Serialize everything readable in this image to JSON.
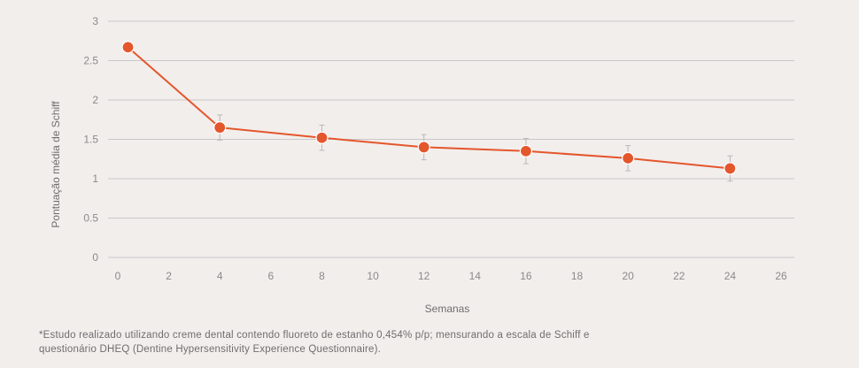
{
  "chart_data": {
    "type": "line",
    "xlabel": "Semanas",
    "ylabel": "Pontuação média de Schiff",
    "xlim": [
      0,
      26
    ],
    "ylim": [
      0,
      3
    ],
    "x_ticks": [
      0,
      2,
      4,
      6,
      8,
      10,
      12,
      14,
      16,
      18,
      20,
      22,
      24,
      26
    ],
    "y_ticks": [
      "0",
      "0.5",
      "1",
      "1.5",
      "2",
      "2.5",
      "3"
    ],
    "grid": "horizontal",
    "series": [
      {
        "color": "#e4562c",
        "x": [
          0.4,
          4,
          8,
          12,
          16,
          20,
          24
        ],
        "y": [
          2.67,
          1.65,
          1.52,
          1.4,
          1.35,
          1.26,
          1.13
        ],
        "error": [
          0,
          0.16,
          0.16,
          0.16,
          0.16,
          0.16,
          0.16
        ]
      }
    ]
  },
  "footnote": {
    "line1": "*Estudo realizado utilizando creme dental contendo fluoreto de estanho 0,454% p/p; mensurando a escala de Schiff e",
    "line2": "questionário DHEQ (Dentine Hypersensitivity Experience Questionnaire)."
  },
  "colors": {
    "background": "#f2eeec",
    "grid": "#c9c7c7",
    "tick_text": "#8a8a8a",
    "series": "#e4562c"
  }
}
